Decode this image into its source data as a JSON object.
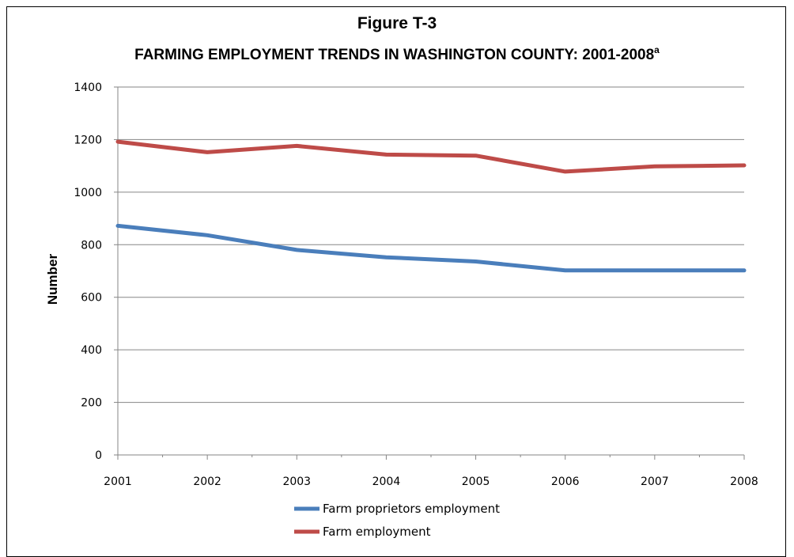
{
  "figure": {
    "label": "Figure T-3",
    "title": "FARMING EMPLOYMENT TRENDS IN WASHINGTON COUNTY: 2001-2008",
    "title_superscript": "a"
  },
  "chart_data": {
    "type": "line",
    "x": [
      "2001",
      "2002",
      "2003",
      "2004",
      "2005",
      "2006",
      "2007",
      "2008"
    ],
    "ylabel": "Number",
    "xlabel": "",
    "ylim": [
      0,
      1400
    ],
    "yticks": [
      0,
      200,
      400,
      600,
      800,
      1000,
      1200,
      1400
    ],
    "grid": "horizontal",
    "legend": "bottom",
    "series": [
      {
        "name": "Farm proprietors employment",
        "color": "#4a7ebb",
        "values": [
          872,
          836,
          780,
          752,
          736,
          702,
          702,
          702
        ]
      },
      {
        "name": "Farm employment",
        "color": "#be4b48",
        "values": [
          1192,
          1152,
          1176,
          1143,
          1139,
          1078,
          1098,
          1102
        ]
      }
    ]
  }
}
